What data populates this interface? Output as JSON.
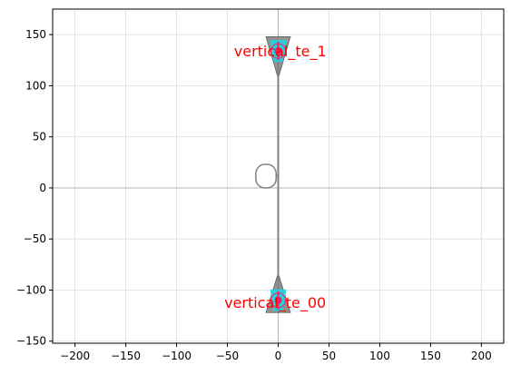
{
  "chart_data": {
    "type": "scatter",
    "title": "",
    "xlabel": "",
    "ylabel": "",
    "xlim": [
      -222,
      222
    ],
    "ylim": [
      -152,
      175
    ],
    "grid": true,
    "x_ticks": [
      -200,
      -150,
      -100,
      -50,
      0,
      50,
      100,
      150,
      200
    ],
    "y_ticks": [
      -150,
      -100,
      -50,
      0,
      50,
      100,
      150
    ],
    "colors": {
      "text": "#000000",
      "grid": "#dddddd",
      "axis_line": "#b3b3b3",
      "geometry": "#808080",
      "taper_fill": "#808080",
      "port_fill": "#1bd6e6",
      "port_marker": "#ff1a5e",
      "port_label": "#ff0000"
    },
    "geometry": {
      "waveguide": {
        "x": [
          0,
          0
        ],
        "y": [
          -110,
          134
        ]
      },
      "tapers": [
        {
          "name": "top-taper",
          "tip_y": 110,
          "wide_y": 148,
          "wide_half_width": 12
        },
        {
          "name": "bottom-taper",
          "tip_y": -86,
          "wide_y": -122,
          "wide_half_width": 12
        }
      ],
      "loop": {
        "x_min": -22,
        "x_max": -2,
        "y_min": 0,
        "y_max": 23,
        "corner": 9
      }
    },
    "ports": [
      {
        "label": "vertical_te_1",
        "x": 0,
        "y": 134,
        "text_x": 2,
        "text_y": 134
      },
      {
        "label": "vertical_te_00",
        "x": 0,
        "y": -110,
        "text_x": -3,
        "text_y": -112
      }
    ]
  }
}
